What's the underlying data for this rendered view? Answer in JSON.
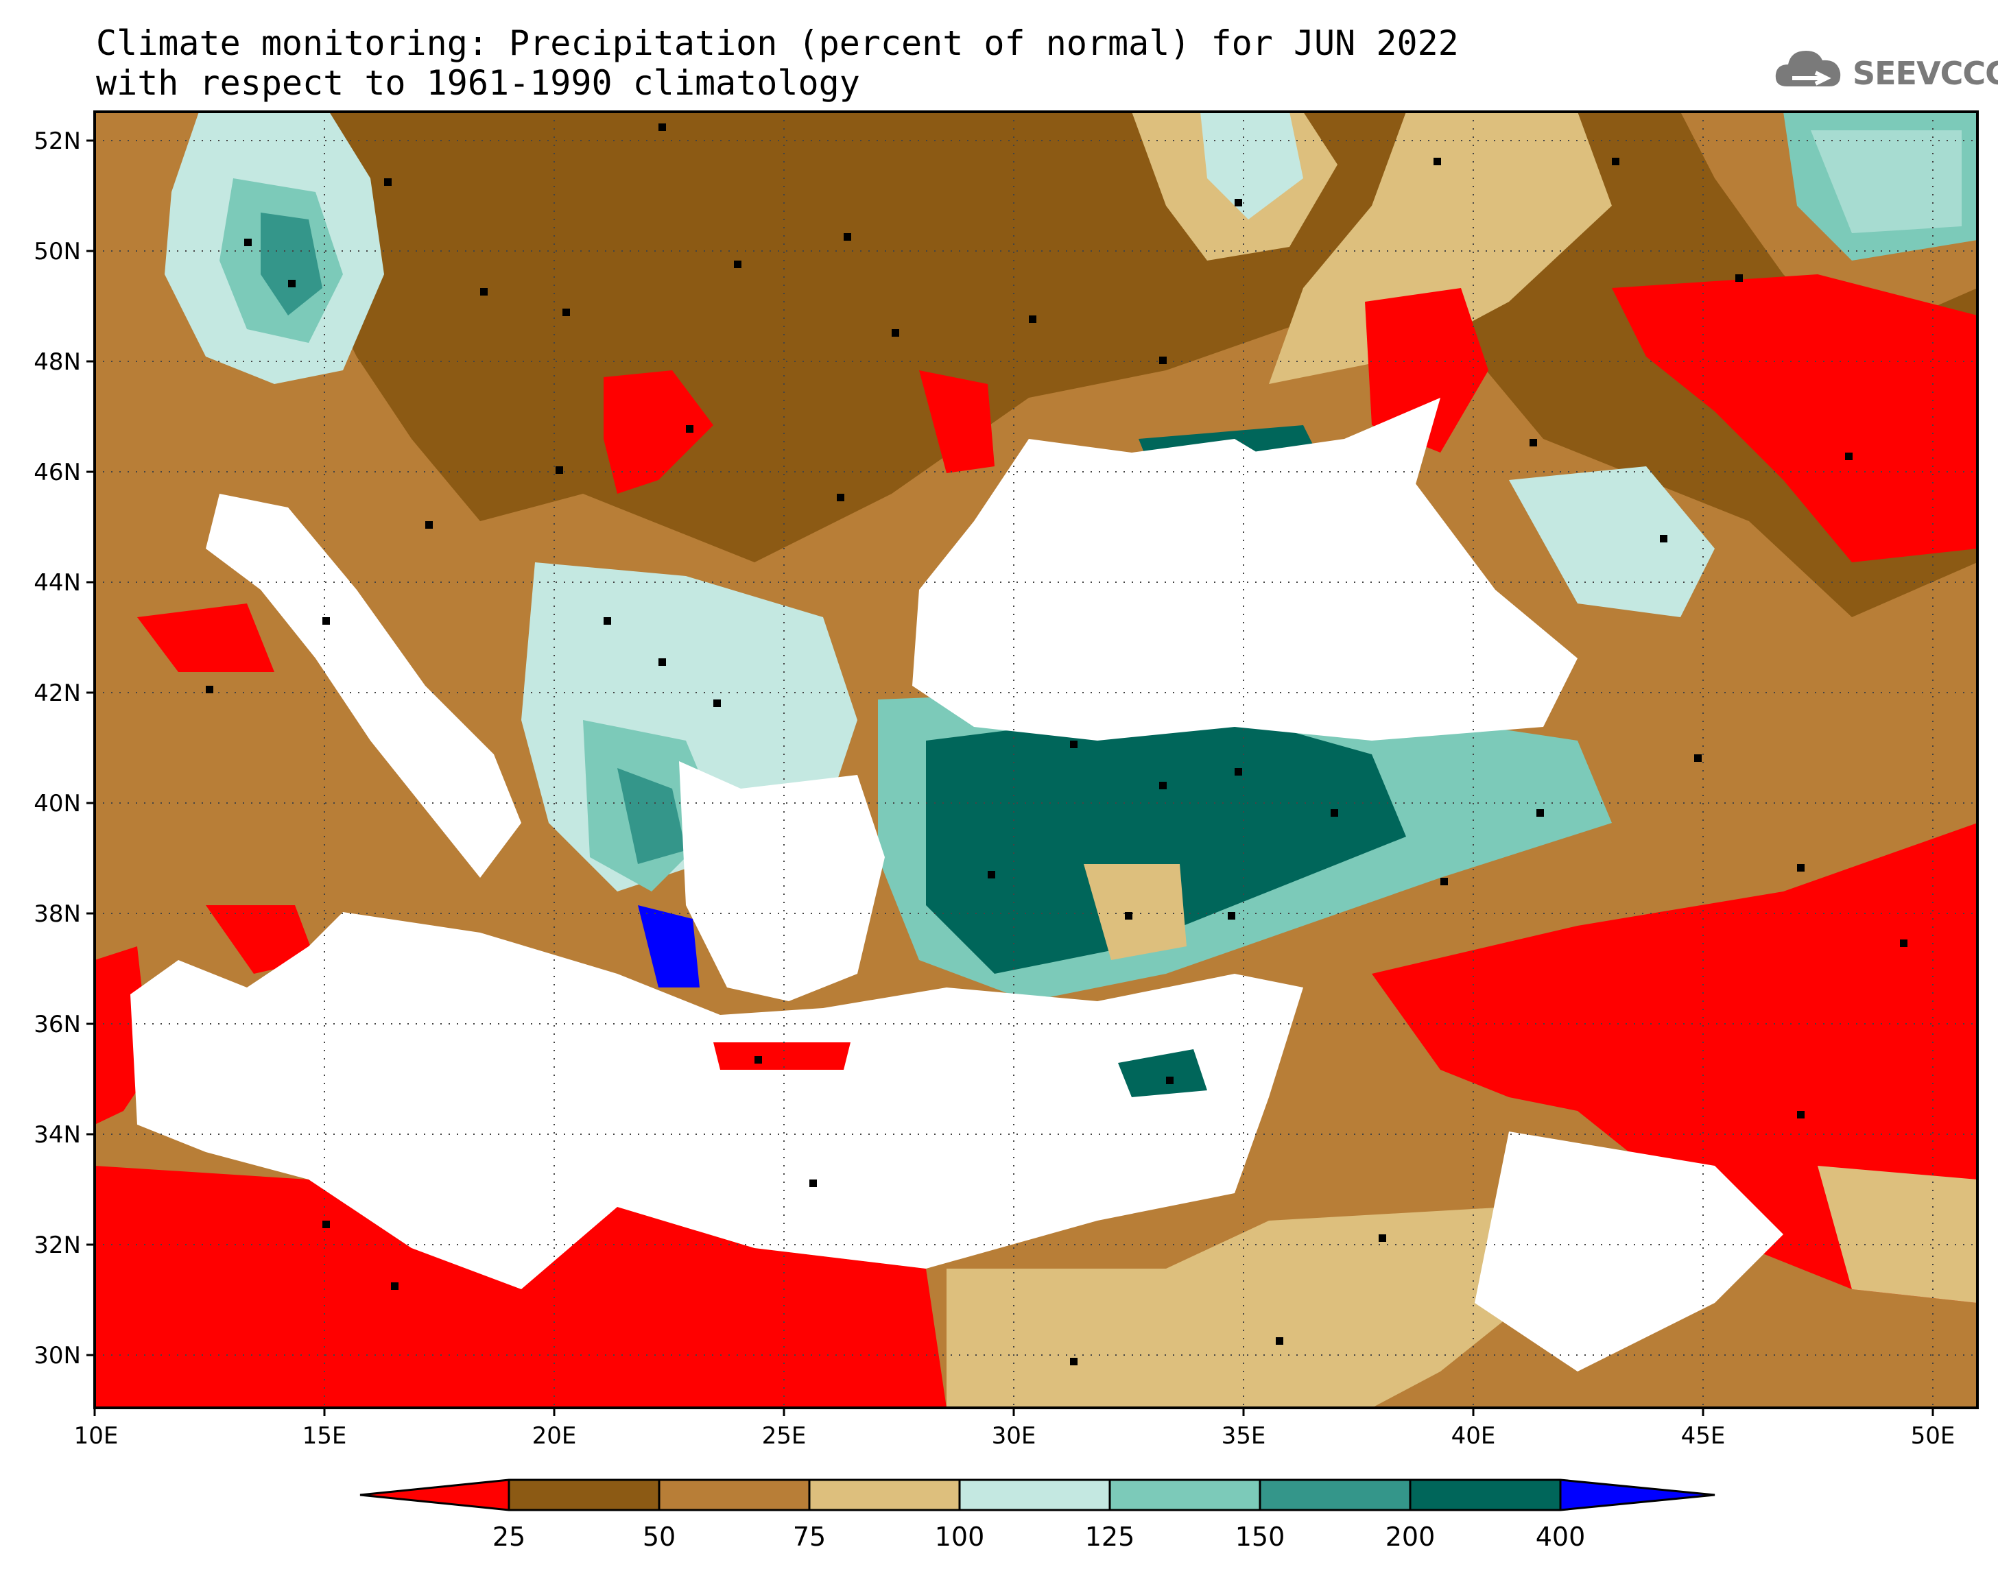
{
  "title_line1": "Climate monitoring: Precipitation (percent of normal) for JUN 2022",
  "title_line2": "with respect to 1961-1990 climatology",
  "logo_text": "SEEVCCC",
  "logo_icon": "cloud-icon",
  "map": {
    "lon_labels": [
      "10E",
      "15E",
      "20E",
      "25E",
      "30E",
      "35E",
      "40E",
      "45E",
      "50E"
    ],
    "lat_labels": [
      "52N",
      "50N",
      "48N",
      "46N",
      "44N",
      "42N",
      "40N",
      "38N",
      "36N",
      "34N",
      "32N",
      "30N"
    ]
  },
  "colorbar": {
    "labels": [
      "25",
      "50",
      "75",
      "100",
      "125",
      "150",
      "200",
      "400"
    ],
    "colors": [
      "#ff0000",
      "#8c5a14",
      "#b87e37",
      "#ddbf7d",
      "#c4e8e1",
      "#7ccab9",
      "#34968a",
      "#00665a",
      "#0000ff"
    ]
  },
  "colors": {
    "sea": "#ffffff",
    "station": "#000000"
  }
}
